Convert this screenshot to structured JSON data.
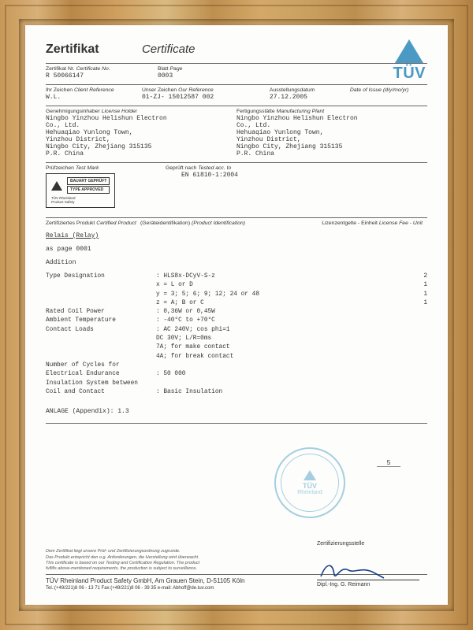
{
  "titles": {
    "de": "Zertifikat",
    "en": "Certificate"
  },
  "logo": {
    "brand": "TÜV",
    "color": "#4a9ac4"
  },
  "row_cert": {
    "cert_no_de": "Zertifikat Nr.",
    "cert_no_en": "Certificate No.",
    "cert_no_val": "R 50066147",
    "page_de": "Blatt",
    "page_en": "Page",
    "page_val": "0003"
  },
  "row_ref": {
    "client_de": "Ihr Zeichen",
    "client_en": "Client Reference",
    "client_val": "W.L.",
    "our_de": "Unser Zeichen",
    "our_en": "Our Reference",
    "our_val": "01-ZJ- 15012587 002",
    "date_de": "Ausstellungsdatum",
    "date_en": "Date of Issue",
    "date_fmt": "(d/y/mo/yr)",
    "date_val": "27.12.2005"
  },
  "row_holder": {
    "holder_de": "Genehmigungsinhaber",
    "holder_en": "License Holder",
    "plant_de": "Fertigungsstätte",
    "plant_en": "Manufacturing Plant",
    "addr_l1": "Ningbo Yinzhou Helishun Electron",
    "addr_l2": "Co., Ltd.",
    "addr_l3": "Hehuaqiao Yunlong Town,",
    "addr_l4": "Yinzhou District,",
    "addr_l5": "Ningbo City, Zhejiang 315135",
    "addr_l6": "P.R. China"
  },
  "row_mark": {
    "mark_de": "Prüfzeichen",
    "mark_en": "Test Mark",
    "tested_de": "Geprüft nach",
    "tested_en": "Tested acc. to",
    "standard": "EN 61810-1:2004",
    "badge1": "BAUART GEPRÜFT",
    "badge2": "TYPE APPROVED",
    "badge_sub1": "TÜV Rheinland",
    "badge_sub2": "Product Safety"
  },
  "row_prod": {
    "prod_de": "Zertifiziertes Produkt",
    "prod_en": "Certified Product",
    "ident_de": "(Geräteidentifikation)",
    "ident_en": "(Product Identification)",
    "fee_de": "Lizenzentgelte - Einheit",
    "fee_en": "License Fee - Unit",
    "product": "Relais (Relay)",
    "as_page": "as page 0001",
    "addition": "Addition",
    "specs": [
      {
        "k": "Type Designation",
        "v": ": HLS8x-DCyV-S-z",
        "r": "2"
      },
      {
        "k": "",
        "v": "  x = L or D",
        "r": "1"
      },
      {
        "k": "",
        "v": "  y = 3; 5; 6; 9; 12; 24 or 48",
        "r": "1"
      },
      {
        "k": "",
        "v": "  z = A; B or C",
        "r": "1"
      },
      {
        "k": "Rated Coil Power",
        "v": ": 0,36W or 0,45W",
        "r": ""
      },
      {
        "k": "Ambient Temperature",
        "v": ": -40°C to +70°C",
        "r": ""
      },
      {
        "k": "Contact Loads",
        "v": ": AC 240V; cos phi=1",
        "r": ""
      },
      {
        "k": "",
        "v": "  DC 30V; L/R=0ms",
        "r": ""
      },
      {
        "k": "",
        "v": "  7A; for make contact",
        "r": ""
      },
      {
        "k": "",
        "v": "  4A; for break contact",
        "r": ""
      },
      {
        "k": "Number of Cycles for",
        "v": "",
        "r": ""
      },
      {
        "k": "Electrical Endurance",
        "v": ": 50 000",
        "r": ""
      },
      {
        "k": "Insulation System between",
        "v": "",
        "r": ""
      },
      {
        "k": "Coil and Contact",
        "v": ": Basic Insulation",
        "r": ""
      }
    ],
    "appendix": "ANLAGE (Appendix): 1.3"
  },
  "stamp": {
    "line1": "TÜV",
    "line2": "Rheinland"
  },
  "page_marker": "5",
  "fine_print": {
    "l1": "Dem Zertifikat liegt unsere Prüf- und Zertifizierungsordnung zugrunde.",
    "l2": "Das Produkt entspricht den o.g. Anforderungen, die Herstellung wird überwacht.",
    "l3": "This certificate is based on our Testing and Certification Regulation. The product",
    "l4": "fulfills above-mentioned requirements, the production is subject to surveillance."
  },
  "footer": {
    "company": "TÜV Rheinland Product Safety GmbH, Am Grauen Stein, D-51105 Köln",
    "contact": "Tel.:(+49/221)8 06 - 13 71  Fax:(+49/221)8 06 - 39 35 e-mail: Abhoff@de.tuv.com"
  },
  "signature": {
    "title": "Zertifizierungsstelle",
    "name": "Dipl.-Ing. G. Reimann"
  }
}
